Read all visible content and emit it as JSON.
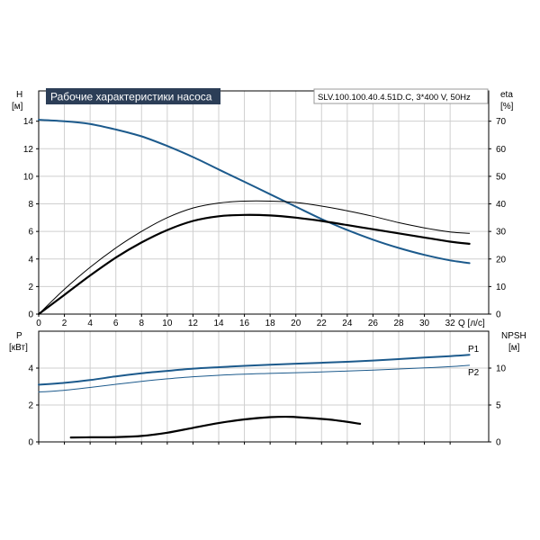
{
  "title": "Рабочие характеристики насоса",
  "model_info": "SLV.100.100.40.4.51D.C, 3*400 V, 50Hz",
  "colors": {
    "title_bg": "#2c3e57",
    "title_text": "#ffffff",
    "blue": "#1c5a8c",
    "black": "#000000",
    "grid": "#cfcfcf"
  },
  "chart_data": [
    {
      "type": "line",
      "panel": "head-efficiency",
      "x_axis": {
        "label": "Q [л/с]",
        "ticks": [
          0,
          2,
          4,
          6,
          8,
          10,
          12,
          14,
          16,
          18,
          20,
          22,
          24,
          26,
          28,
          30,
          32
        ],
        "lim": [
          0,
          35
        ]
      },
      "y_left": {
        "label_top": "H",
        "label_unit": "[м]",
        "ticks": [
          0,
          2,
          4,
          6,
          8,
          10,
          12,
          14
        ],
        "lim": [
          0,
          16.2
        ]
      },
      "y_right": {
        "label_top": "eta",
        "label_unit": "[%]",
        "ticks": [
          0,
          10,
          20,
          30,
          40,
          50,
          60,
          70
        ],
        "lim": [
          0,
          81
        ]
      },
      "grid": true,
      "series": [
        {
          "axis": "left",
          "color": "blue",
          "width": 2,
          "x": [
            0,
            2,
            4,
            6,
            8,
            10,
            12,
            14,
            16,
            18,
            20,
            22,
            24,
            26,
            28,
            30,
            32,
            33.5
          ],
          "y": [
            14.1,
            14.0,
            13.8,
            13.4,
            12.9,
            12.2,
            11.4,
            10.5,
            9.6,
            8.7,
            7.8,
            6.9,
            6.1,
            5.4,
            4.8,
            4.3,
            3.9,
            3.7
          ]
        },
        {
          "axis": "right",
          "color": "black",
          "width": 1,
          "x": [
            0,
            2,
            4,
            6,
            8,
            10,
            12,
            14,
            16,
            18,
            20,
            22,
            24,
            26,
            28,
            30,
            32,
            33.5
          ],
          "y": [
            0,
            9,
            17,
            24,
            30,
            35,
            38.5,
            40.3,
            41,
            41,
            40.5,
            39.2,
            37.5,
            35.5,
            33.2,
            31.3,
            29.8,
            29.3
          ]
        },
        {
          "axis": "right",
          "color": "black",
          "width": 2.2,
          "x": [
            0,
            2,
            4,
            6,
            8,
            10,
            12,
            14,
            16,
            18,
            20,
            22,
            24,
            26,
            28,
            30,
            32,
            33.5
          ],
          "y": [
            0,
            7,
            14,
            20.5,
            26,
            30.5,
            33.8,
            35.5,
            36,
            35.8,
            35,
            33.8,
            32.3,
            30.8,
            29.3,
            27.8,
            26.3,
            25.5
          ]
        }
      ]
    },
    {
      "type": "line",
      "panel": "power-npsh",
      "x_axis": {
        "ticks": [
          0,
          2,
          4,
          6,
          8,
          10,
          12,
          14,
          16,
          18,
          20,
          22,
          24,
          26,
          28,
          30,
          32
        ],
        "lim": [
          0,
          35
        ]
      },
      "y_left": {
        "label_top": "P",
        "label_unit": "[кВт]",
        "ticks": [
          0,
          2,
          4
        ],
        "lim": [
          0,
          6
        ]
      },
      "y_right": {
        "label_top": "NPSH",
        "label_unit": "[м]",
        "ticks": [
          0,
          5,
          10
        ],
        "lim": [
          0,
          15
        ]
      },
      "grid": true,
      "series": [
        {
          "name": "P1",
          "axis": "left",
          "color": "blue",
          "width": 2,
          "x": [
            0,
            2,
            4,
            6,
            8,
            10,
            12,
            14,
            16,
            18,
            20,
            22,
            24,
            26,
            28,
            30,
            32,
            33.5
          ],
          "y": [
            3.1,
            3.2,
            3.35,
            3.55,
            3.72,
            3.85,
            3.97,
            4.05,
            4.12,
            4.18,
            4.24,
            4.29,
            4.34,
            4.41,
            4.49,
            4.57,
            4.65,
            4.72
          ]
        },
        {
          "name": "P2",
          "axis": "left",
          "color": "blue",
          "width": 1,
          "x": [
            0,
            2,
            4,
            6,
            8,
            10,
            12,
            14,
            16,
            18,
            20,
            22,
            24,
            26,
            28,
            30,
            32,
            33.5
          ],
          "y": [
            2.7,
            2.8,
            2.95,
            3.12,
            3.28,
            3.42,
            3.53,
            3.61,
            3.67,
            3.71,
            3.75,
            3.79,
            3.84,
            3.89,
            3.95,
            4.01,
            4.08,
            4.15
          ]
        },
        {
          "axis": "right",
          "color": "black",
          "width": 2.2,
          "x": [
            2.5,
            4,
            6,
            8,
            10,
            12,
            14,
            16,
            18,
            19.5,
            21,
            23,
            25
          ],
          "y": [
            0.6,
            0.62,
            0.65,
            0.8,
            1.25,
            1.9,
            2.55,
            3.05,
            3.35,
            3.4,
            3.25,
            2.95,
            2.45
          ]
        }
      ]
    }
  ]
}
